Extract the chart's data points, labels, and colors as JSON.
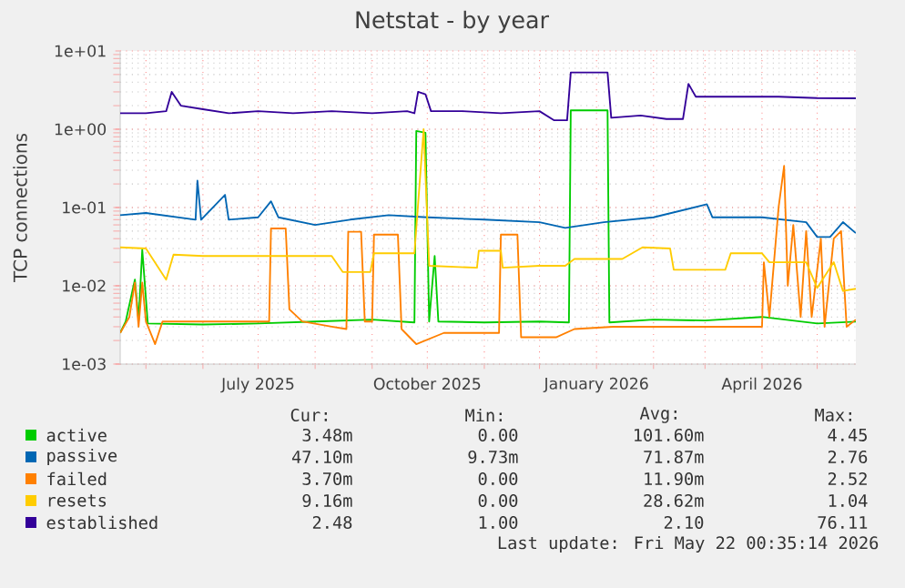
{
  "chart_data": {
    "type": "line",
    "title": "Netstat - by year",
    "ylabel": "TCP connections",
    "log": "y",
    "grid": true,
    "legend": "bottom",
    "xlim": [
      "2025-04-17",
      "2026-05-22"
    ],
    "ylim": [
      0.001,
      10
    ],
    "xticks": [
      {
        "value": "2025-05-01",
        "label": null
      },
      {
        "value": "2025-06-01",
        "label": null
      },
      {
        "value": "2025-07-01",
        "label": "July 2025"
      },
      {
        "value": "2025-08-01",
        "label": null
      },
      {
        "value": "2025-09-01",
        "label": null
      },
      {
        "value": "2025-10-01",
        "label": "October 2025"
      },
      {
        "value": "2025-11-01",
        "label": null
      },
      {
        "value": "2025-12-01",
        "label": null
      },
      {
        "value": "2026-01-01",
        "label": "January 2026"
      },
      {
        "value": "2026-02-01",
        "label": null
      },
      {
        "value": "2026-03-01",
        "label": null
      },
      {
        "value": "2026-04-01",
        "label": "April 2026"
      },
      {
        "value": "2026-05-01",
        "label": null
      }
    ],
    "yticks": [
      {
        "value": 0.001,
        "label": "1e-03"
      },
      {
        "value": 0.01,
        "label": "1e-02"
      },
      {
        "value": 0.1,
        "label": "1e-01"
      },
      {
        "value": 1,
        "label": "1e+00"
      },
      {
        "value": 10,
        "label": "1e+01"
      }
    ],
    "series": [
      {
        "name": "active",
        "color": "#00cc00",
        "x": [
          "2025-04-17",
          "2025-04-20",
          "2025-04-25",
          "2025-04-27",
          "2025-04-29",
          "2025-05-02",
          "2025-06-01",
          "2025-07-01",
          "2025-08-01",
          "2025-09-01",
          "2025-09-24",
          "2025-09-25",
          "2025-09-30",
          "2025-10-02",
          "2025-10-05",
          "2025-10-07",
          "2025-11-01",
          "2025-12-01",
          "2025-12-17",
          "2025-12-18",
          "2026-01-07",
          "2026-01-08",
          "2026-02-01",
          "2026-03-01",
          "2026-04-01",
          "2026-05-01",
          "2026-05-22"
        ],
        "values": [
          0.0025,
          0.0035,
          0.012,
          0.0036,
          0.029,
          0.0033,
          0.0032,
          0.0033,
          0.0035,
          0.0037,
          0.0034,
          0.95,
          0.9,
          0.0035,
          0.024,
          0.0035,
          0.0034,
          0.0035,
          0.0034,
          1.74,
          1.74,
          0.0034,
          0.0037,
          0.0036,
          0.004,
          0.0033,
          0.00348
        ]
      },
      {
        "name": "passive",
        "color": "#0066b3",
        "x": [
          "2025-04-17",
          "2025-05-01",
          "2025-05-28",
          "2025-05-29",
          "2025-05-31",
          "2025-06-13",
          "2025-06-15",
          "2025-07-01",
          "2025-07-08",
          "2025-07-12",
          "2025-08-01",
          "2025-08-20",
          "2025-09-10",
          "2025-10-01",
          "2025-11-01",
          "2025-12-01",
          "2025-12-15",
          "2026-01-05",
          "2026-02-01",
          "2026-03-02",
          "2026-03-05",
          "2026-04-01",
          "2026-04-25",
          "2026-05-01",
          "2026-05-08",
          "2026-05-15",
          "2026-05-22"
        ],
        "values": [
          0.08,
          0.085,
          0.07,
          0.22,
          0.07,
          0.145,
          0.07,
          0.075,
          0.12,
          0.075,
          0.06,
          0.07,
          0.08,
          0.075,
          0.07,
          0.065,
          0.055,
          0.065,
          0.075,
          0.11,
          0.075,
          0.075,
          0.065,
          0.042,
          0.042,
          0.065,
          0.0471
        ]
      },
      {
        "name": "failed",
        "color": "#ff8000",
        "x": [
          "2025-04-17",
          "2025-04-22",
          "2025-04-25",
          "2025-04-27",
          "2025-04-29",
          "2025-05-01",
          "2025-05-06",
          "2025-05-10",
          "2025-06-01",
          "2025-07-01",
          "2025-07-07",
          "2025-07-08",
          "2025-07-16",
          "2025-07-18",
          "2025-07-25",
          "2025-08-10",
          "2025-08-18",
          "2025-08-19",
          "2025-08-26",
          "2025-08-28",
          "2025-09-01",
          "2025-09-02",
          "2025-09-15",
          "2025-09-17",
          "2025-09-25",
          "2025-10-10",
          "2025-11-09",
          "2025-11-10",
          "2025-11-19",
          "2025-11-21",
          "2025-12-10",
          "2025-12-20",
          "2026-01-10",
          "2026-02-10",
          "2026-03-10",
          "2026-04-01",
          "2026-04-02",
          "2026-04-05",
          "2026-04-10",
          "2026-04-13",
          "2026-04-15",
          "2026-04-18",
          "2026-04-22",
          "2026-04-25",
          "2026-04-28",
          "2026-05-03",
          "2026-05-05",
          "2026-05-10",
          "2026-05-14",
          "2026-05-17",
          "2026-05-22"
        ],
        "values": [
          0.0025,
          0.004,
          0.011,
          0.003,
          0.011,
          0.0035,
          0.0018,
          0.0035,
          0.0035,
          0.0035,
          0.0035,
          0.054,
          0.054,
          0.005,
          0.0035,
          0.003,
          0.0028,
          0.049,
          0.049,
          0.0035,
          0.0035,
          0.045,
          0.045,
          0.0028,
          0.0018,
          0.0025,
          0.0025,
          0.045,
          0.045,
          0.0022,
          0.0022,
          0.0028,
          0.003,
          0.003,
          0.003,
          0.003,
          0.02,
          0.004,
          0.1,
          0.34,
          0.01,
          0.06,
          0.004,
          0.05,
          0.004,
          0.04,
          0.003,
          0.04,
          0.05,
          0.003,
          0.0037
        ]
      },
      {
        "name": "resets",
        "color": "#ffcc00",
        "x": [
          "2025-04-17",
          "2025-05-01",
          "2025-05-12",
          "2025-05-16",
          "2025-06-01",
          "2025-07-01",
          "2025-08-10",
          "2025-08-16",
          "2025-08-31",
          "2025-09-02",
          "2025-09-24",
          "2025-09-29",
          "2025-10-02",
          "2025-10-28",
          "2025-10-29",
          "2025-11-10",
          "2025-11-11",
          "2025-12-01",
          "2025-12-15",
          "2025-12-20",
          "2026-01-15",
          "2026-01-26",
          "2026-02-10",
          "2026-02-12",
          "2026-03-12",
          "2026-03-15",
          "2026-04-01",
          "2026-04-05",
          "2026-04-25",
          "2026-05-01",
          "2026-05-10",
          "2026-05-15",
          "2026-05-22"
        ],
        "values": [
          0.031,
          0.03,
          0.012,
          0.025,
          0.024,
          0.024,
          0.024,
          0.015,
          0.015,
          0.026,
          0.026,
          1.0,
          0.018,
          0.017,
          0.028,
          0.028,
          0.017,
          0.018,
          0.018,
          0.022,
          0.022,
          0.031,
          0.03,
          0.016,
          0.016,
          0.026,
          0.026,
          0.02,
          0.02,
          0.0094,
          0.02,
          0.0086,
          0.00916
        ]
      },
      {
        "name": "established",
        "color": "#330099",
        "x": [
          "2025-04-17",
          "2025-05-01",
          "2025-05-12",
          "2025-05-15",
          "2025-05-20",
          "2025-06-01",
          "2025-06-15",
          "2025-07-01",
          "2025-07-20",
          "2025-08-10",
          "2025-09-01",
          "2025-09-20",
          "2025-09-24",
          "2025-09-26",
          "2025-09-30",
          "2025-10-03",
          "2025-10-20",
          "2025-11-10",
          "2025-12-01",
          "2025-12-09",
          "2025-12-16",
          "2025-12-18",
          "2026-01-07",
          "2026-01-09",
          "2026-01-25",
          "2026-02-08",
          "2026-02-17",
          "2026-02-20",
          "2026-02-24",
          "2026-03-15",
          "2026-04-10",
          "2026-05-01",
          "2026-05-22"
        ],
        "values": [
          1.6,
          1.6,
          1.7,
          3.0,
          2.0,
          1.8,
          1.6,
          1.7,
          1.6,
          1.7,
          1.6,
          1.7,
          1.6,
          3.0,
          2.8,
          1.7,
          1.7,
          1.6,
          1.7,
          1.3,
          1.3,
          5.3,
          5.3,
          1.4,
          1.5,
          1.35,
          1.35,
          3.8,
          2.6,
          2.6,
          2.6,
          2.5,
          2.48
        ]
      }
    ],
    "annotations": [
      "Cur:",
      "Min:",
      "Avg:",
      "Max:",
      "3.48m",
      "0.00",
      "101.60m",
      "4.45",
      "47.10m",
      "9.73m",
      "71.87m",
      "2.76",
      "3.70m",
      "0.00",
      "11.90m",
      "2.52",
      "9.16m",
      "0.00",
      "28.62m",
      "1.04",
      "2.48",
      "1.00",
      "2.10",
      "76.11",
      "Last update: Fri May 22 00:35:14 2026"
    ]
  }
}
